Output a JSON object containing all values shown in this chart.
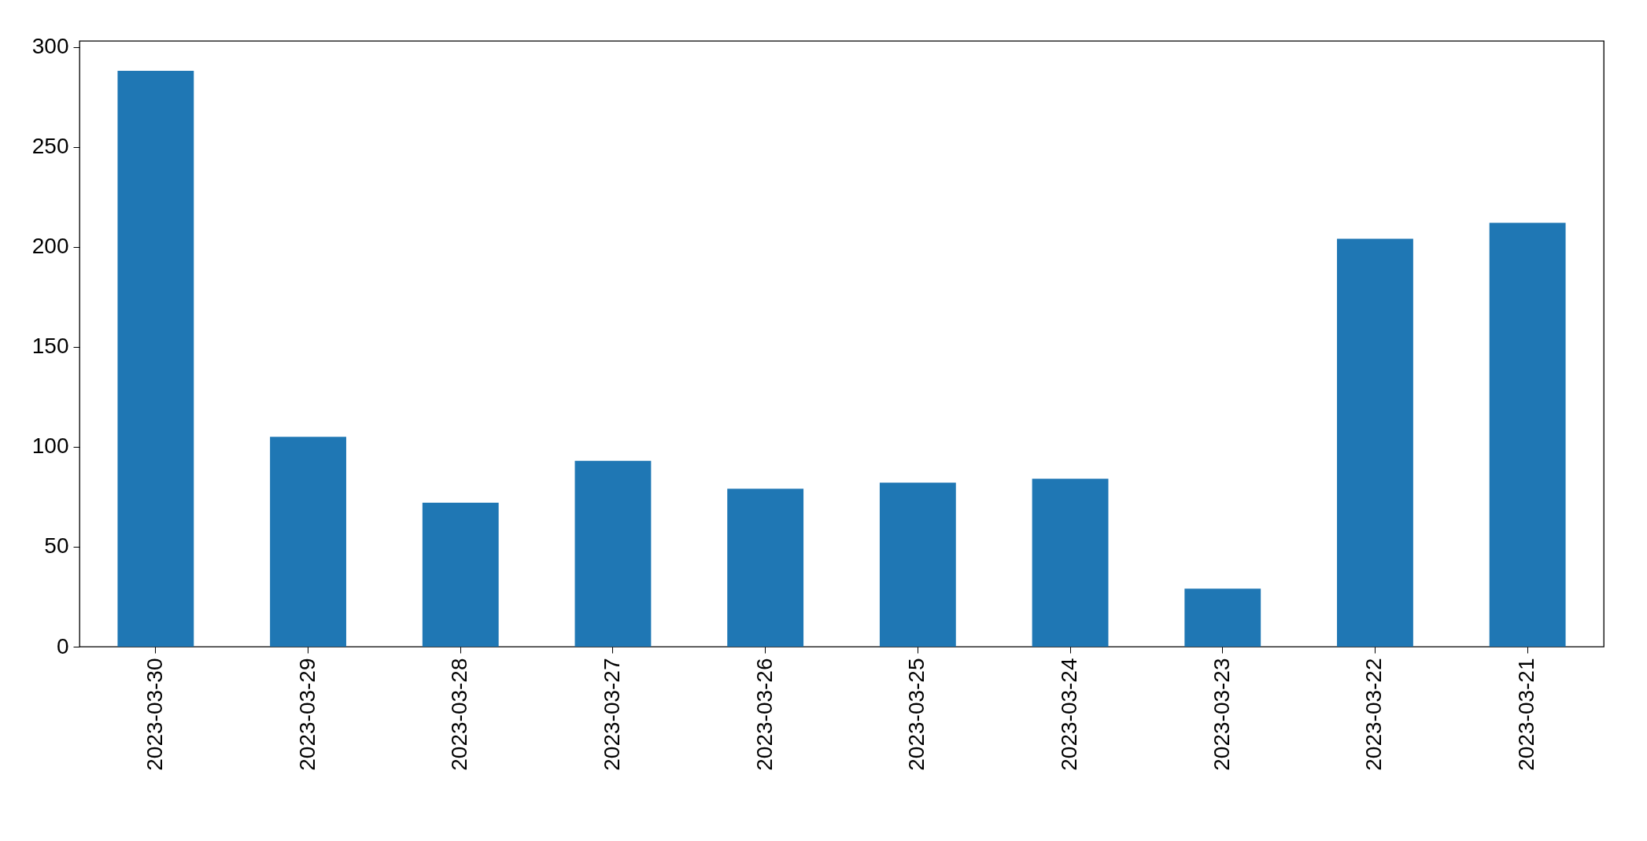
{
  "chart_data": {
    "type": "bar",
    "categories": [
      "2023-03-30",
      "2023-03-29",
      "2023-03-28",
      "2023-03-27",
      "2023-03-26",
      "2023-03-25",
      "2023-03-24",
      "2023-03-23",
      "2023-03-22",
      "2023-03-21"
    ],
    "values": [
      288,
      105,
      72,
      93,
      79,
      82,
      84,
      29,
      204,
      212
    ],
    "color": "#1f77b4",
    "ylim": [
      0,
      303
    ],
    "yticks": [
      0,
      50,
      100,
      150,
      200,
      250,
      300
    ],
    "grid": false,
    "legend": false
  }
}
